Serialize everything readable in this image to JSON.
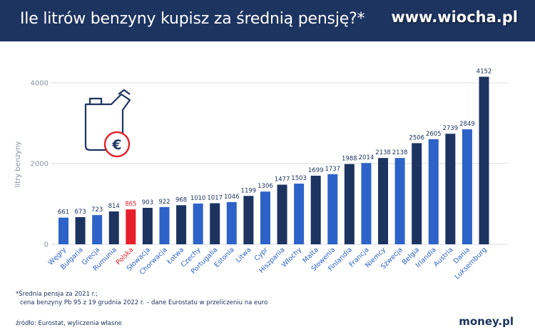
{
  "header": {
    "title": "Ile litrów benzyny kupisz za średnią pensję?*",
    "watermark": "www.wiocha.pl"
  },
  "chart_data": {
    "type": "bar",
    "ylabel": "litry benzyny",
    "ylim": [
      0,
      4200
    ],
    "yticks": [
      0,
      2000,
      4000
    ],
    "grid": true,
    "categories": [
      "Węgry",
      "Bułgaria",
      "Grecja",
      "Rumunia",
      "Polska",
      "Słowacja",
      "Chorwacja",
      "Łotwa",
      "Czechy",
      "Portugalia",
      "Estonia",
      "Litwa",
      "Cypr",
      "Hiszpania",
      "Włochy",
      "Malta",
      "Słowenia",
      "Finlandia",
      "Francja",
      "Niemcy",
      "Szwecja",
      "Belgia",
      "Irlandia",
      "Austria",
      "Dania",
      "Luksemburg"
    ],
    "values": [
      661,
      673,
      723,
      814,
      865,
      903,
      922,
      968,
      1010,
      1017,
      1046,
      1199,
      1306,
      1477,
      1503,
      1699,
      1737,
      1988,
      2014,
      2138,
      2138,
      2506,
      2605,
      2739,
      2849,
      4152
    ],
    "highlight_category": "Polska",
    "colors": {
      "dark": "#1d3461",
      "bright": "#2d62c8",
      "highlight": "#e5202a",
      "grid": "#dcdee5",
      "axis_text": "#8a91a6"
    }
  },
  "footnote": {
    "line1": "*Średnia pensja za 2021 r.;",
    "line2": "cena benzyny Pb 95 z 19 grudnia 2022 r. – dane Eurostatu w przeliczeniu na euro"
  },
  "source": "źródło: Eurostat, wyliczenia własne",
  "brand": "money.pl",
  "icon": {
    "name": "fuel-can-euro-icon",
    "symbol": "€"
  }
}
